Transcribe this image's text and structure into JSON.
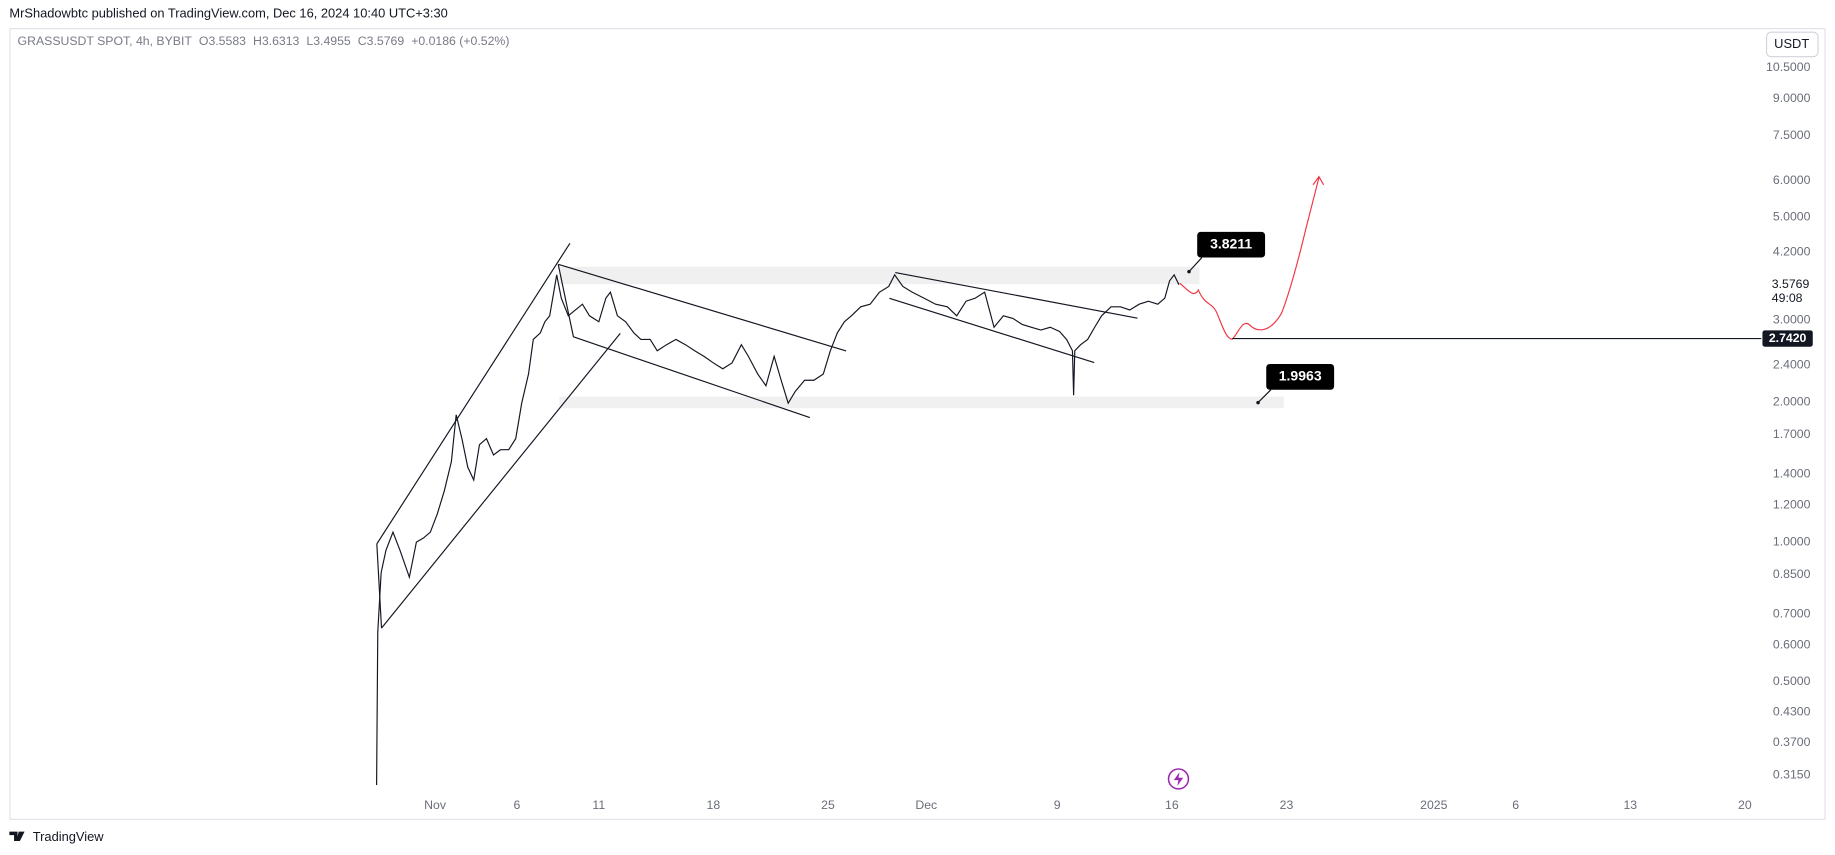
{
  "header": {
    "published": "MrShadowbtc published on TradingView.com, Dec 16, 2024 10:40 UTC+3:30",
    "brand": "TradingView"
  },
  "chart_data": {
    "type": "line",
    "title": "GRASSUSDT SPOT, 4h, BYBIT",
    "ohlc": [
      {
        "label": "O",
        "value": 3.5583
      },
      {
        "label": "H",
        "value": 3.6313
      },
      {
        "label": "L",
        "value": 3.4955
      },
      {
        "label": "C",
        "value": 3.5769
      }
    ],
    "change": "+0.0186 (+0.52%)",
    "currency": "USDT",
    "log_scale": true,
    "grid": false,
    "color": "#131722",
    "xlim": [
      -26,
      81
    ],
    "xticks": [
      {
        "value": 0,
        "label": "Nov"
      },
      {
        "value": 5,
        "label": "6"
      },
      {
        "value": 10,
        "label": "11"
      },
      {
        "value": 17,
        "label": "18"
      },
      {
        "value": 24,
        "label": "25"
      },
      {
        "value": 30,
        "label": "Dec"
      },
      {
        "value": 38,
        "label": "9"
      },
      {
        "value": 45,
        "label": "16"
      },
      {
        "value": 52,
        "label": "23"
      },
      {
        "value": 61,
        "label": "2025"
      },
      {
        "value": 66,
        "label": "6"
      },
      {
        "value": 73,
        "label": "13"
      },
      {
        "value": 80,
        "label": "20"
      }
    ],
    "ylim": [
      0.29,
      12.7
    ],
    "yticks": [
      {
        "value": 10.5,
        "label": "10.5000"
      },
      {
        "value": 9,
        "label": "9.0000"
      },
      {
        "value": 7.5,
        "label": "7.5000"
      },
      {
        "value": 6,
        "label": "6.0000"
      },
      {
        "value": 5,
        "label": "5.0000"
      },
      {
        "value": 4.2,
        "label": "4.2000"
      },
      {
        "value": 3,
        "label": "3.0000"
      },
      {
        "value": 2.4,
        "label": "2.4000"
      },
      {
        "value": 2,
        "label": "2.0000"
      },
      {
        "value": 1.7,
        "label": "1.7000"
      },
      {
        "value": 1.4,
        "label": "1.4000"
      },
      {
        "value": 1.2,
        "label": "1.2000"
      },
      {
        "value": 1,
        "label": "1.0000"
      },
      {
        "value": 0.85,
        "label": "0.8500"
      },
      {
        "value": 0.7,
        "label": "0.7000"
      },
      {
        "value": 0.6,
        "label": "0.6000"
      },
      {
        "value": 0.5,
        "label": "0.5000"
      },
      {
        "value": 0.43,
        "label": "0.4300"
      },
      {
        "value": 0.37,
        "label": "0.3700"
      },
      {
        "value": 0.315,
        "label": "0.3150"
      }
    ],
    "x": [
      -3.57,
      -3.5,
      -3.29,
      -3,
      -2.57,
      -2.14,
      -1.57,
      -1.14,
      -0.71,
      -0.29,
      0.14,
      0.57,
      1,
      1.29,
      1.64,
      2,
      2.36,
      2.71,
      3.14,
      3.57,
      4,
      4.5,
      4.93,
      5.29,
      5.71,
      6,
      6.43,
      6.71,
      7,
      7.43,
      7.71,
      8.14,
      8.57,
      9,
      9.43,
      10,
      10.43,
      10.71,
      11.14,
      11.64,
      12.14,
      12.57,
      13.14,
      13.57,
      14.14,
      14.71,
      15.29,
      15.86,
      16.43,
      17,
      17.57,
      18.14,
      18.71,
      19.14,
      19.71,
      20.21,
      20.71,
      21.14,
      21.57,
      22,
      22.57,
      23.14,
      23.71,
      24.14,
      24.57,
      25,
      25.43,
      26,
      26.57,
      27.14,
      27.71,
      28.07,
      28.57,
      29.14,
      29.86,
      30.57,
      31.29,
      31.86,
      32.43,
      33,
      33.57,
      34.14,
      34.71,
      35.29,
      35.86,
      36.43,
      37,
      37.57,
      38.14,
      38.57,
      38.93,
      39,
      39.07,
      39.43,
      39.86,
      40.29,
      40.71,
      41.29,
      41.86,
      42.43,
      43,
      43.57,
      44.14,
      44.57,
      44.86,
      45.14,
      45.43
    ],
    "values": [
      0.3,
      0.64,
      0.86,
      0.96,
      1.05,
      0.96,
      0.84,
      1.0,
      1.02,
      1.05,
      1.15,
      1.29,
      1.49,
      1.88,
      1.67,
      1.45,
      1.36,
      1.62,
      1.67,
      1.54,
      1.58,
      1.58,
      1.67,
      1.99,
      2.3,
      2.73,
      2.82,
      2.98,
      3.07,
      3.76,
      3.35,
      3.07,
      3.16,
      3.25,
      3.07,
      2.98,
      3.35,
      3.45,
      3.07,
      2.98,
      2.82,
      2.73,
      2.73,
      2.58,
      2.66,
      2.73,
      2.66,
      2.58,
      2.51,
      2.43,
      2.36,
      2.43,
      2.66,
      2.51,
      2.3,
      2.17,
      2.51,
      2.23,
      1.99,
      2.11,
      2.23,
      2.23,
      2.3,
      2.58,
      2.82,
      2.98,
      3.07,
      3.21,
      3.25,
      3.45,
      3.55,
      3.76,
      3.55,
      3.45,
      3.35,
      3.25,
      3.21,
      3.07,
      3.3,
      3.35,
      3.45,
      2.9,
      3.07,
      3.03,
      2.94,
      2.9,
      2.86,
      2.9,
      2.84,
      2.73,
      2.58,
      2.07,
      2.58,
      2.66,
      2.73,
      2.9,
      3.07,
      3.21,
      3.21,
      3.16,
      3.25,
      3.3,
      3.25,
      3.35,
      3.65,
      3.76,
      3.58
    ],
    "last_price": {
      "value": 3.5769,
      "label": "3.5769",
      "countdown": "49:08"
    },
    "hline": {
      "value": 2.742,
      "label": "2.7420"
    },
    "annotations": [
      {
        "value": 3.8211
      },
      {
        "value": 1.9963
      }
    ]
  }
}
